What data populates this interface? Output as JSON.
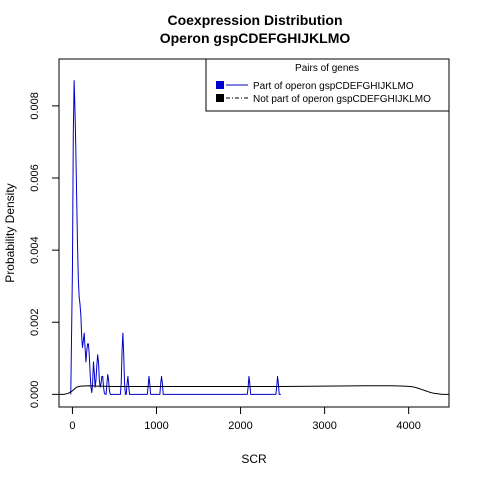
{
  "chart_data": {
    "type": "line",
    "title": "Coexpression Distribution",
    "subtitle": "Operon gspCDEFGHIJKLMO",
    "xlabel": "SCR",
    "ylabel": "Probability Density",
    "xlim": [
      -160,
      4480
    ],
    "ylim": [
      -0.00035,
      0.0093
    ],
    "xticks": [
      0,
      1000,
      2000,
      3000,
      4000
    ],
    "xtick_labels": [
      "0",
      "1000",
      "2000",
      "3000",
      "4000"
    ],
    "yticks": [
      0,
      0.002,
      0.004,
      0.006,
      0.008
    ],
    "ytick_labels": [
      "0.000",
      "0.002",
      "0.004",
      "0.006",
      "0.008"
    ],
    "grid": false,
    "legend": {
      "title": "Pairs of genes",
      "position": "top-right"
    },
    "series": [
      {
        "name": "Part of operon gspCDEFGHIJKLMO",
        "color": "#0000cc",
        "line_style": "solid",
        "x": [
          -20,
          0,
          10,
          20,
          30,
          40,
          50,
          60,
          70,
          80,
          90,
          100,
          110,
          120,
          130,
          140,
          150,
          160,
          170,
          180,
          190,
          200,
          210,
          220,
          230,
          240,
          250,
          260,
          270,
          280,
          290,
          300,
          310,
          320,
          330,
          340,
          350,
          360,
          370,
          380,
          390,
          400,
          410,
          420,
          430,
          440,
          450,
          460,
          470,
          480,
          500,
          540,
          570,
          580,
          590,
          600,
          610,
          620,
          630,
          640,
          650,
          660,
          670,
          680,
          700,
          860,
          890,
          900,
          910,
          920,
          930,
          960,
          1010,
          1040,
          1050,
          1060,
          1070,
          1080,
          1110,
          2060,
          2080,
          2090,
          2100,
          2110,
          2120,
          2140,
          2400,
          2420,
          2430,
          2440,
          2450,
          2460,
          2480
        ],
        "y": [
          0.0,
          0.0035,
          0.0072,
          0.0087,
          0.0079,
          0.0068,
          0.0055,
          0.0042,
          0.0032,
          0.0027,
          0.0025,
          0.0022,
          0.0016,
          0.0013,
          0.0015,
          0.0017,
          0.0013,
          0.0009,
          0.0012,
          0.0014,
          0.0014,
          0.0011,
          0.0006,
          0.0002,
          5e-05,
          0.0003,
          0.0009,
          0.0006,
          0.0002,
          0.0004,
          0.0008,
          0.0011,
          0.0009,
          0.0004,
          0.0002,
          0.0003,
          0.0005,
          0.0005,
          0.0002,
          3e-05,
          0.0,
          0.0,
          0.0003,
          0.00055,
          0.0004,
          0.0001,
          0.0,
          0.0,
          0.0,
          0.0,
          0.0,
          0.0,
          0.0,
          0.0003,
          0.0012,
          0.0017,
          0.0011,
          0.0003,
          0.0,
          0.0,
          0.0003,
          0.0005,
          0.0002,
          0.0,
          0.0,
          0.0,
          0.0,
          0.0002,
          0.0005,
          0.0003,
          0.0,
          0.0,
          0.0,
          0.0,
          0.0003,
          0.0005,
          0.0003,
          0.0,
          0.0,
          0.0,
          0.0,
          0.0002,
          0.0005,
          0.0003,
          0.0,
          0.0,
          0.0,
          0.0,
          0.0002,
          0.0005,
          0.0003,
          0.0,
          0.0
        ]
      },
      {
        "name": "Not part of operon gspCDEFGHIJKLMO",
        "color": "#000000",
        "line_style": "dash-dot",
        "x": [
          -160,
          -100,
          -50,
          0,
          50,
          100,
          200,
          300,
          500,
          1000,
          1500,
          2000,
          2500,
          3000,
          3500,
          3800,
          3950,
          4050,
          4100,
          4150,
          4200,
          4250,
          4300,
          4400,
          4480
        ],
        "y": [
          0.0,
          0.0,
          3e-05,
          0.0001,
          0.0002,
          0.00023,
          0.00024,
          0.00023,
          0.00022,
          0.00022,
          0.00022,
          0.00022,
          0.00022,
          0.00023,
          0.00024,
          0.00024,
          0.00023,
          0.00021,
          0.00018,
          0.00014,
          0.0001,
          6e-05,
          3e-05,
          0.0,
          0.0
        ]
      }
    ]
  }
}
